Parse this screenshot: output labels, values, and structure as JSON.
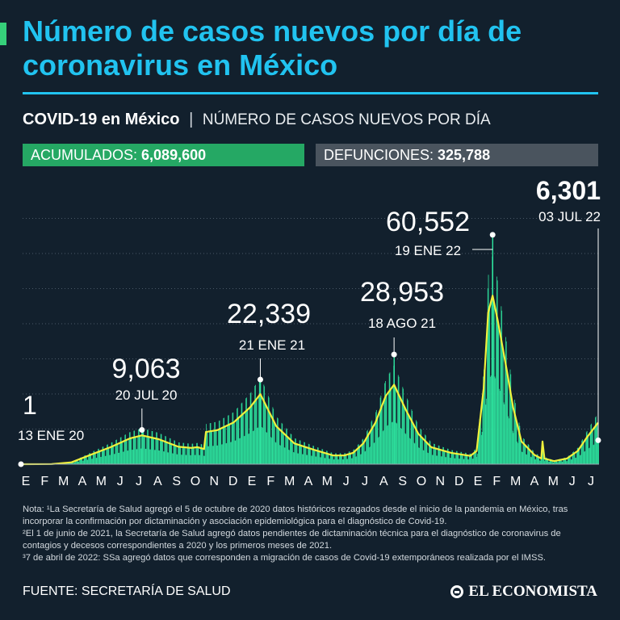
{
  "header": {
    "title": "Número de casos nuevos por día de coronavirus en México"
  },
  "subtitle": {
    "bold": "COVID-19 en México",
    "separator": "|",
    "light": "NÚMERO DE CASOS NUEVOS POR DÍA"
  },
  "stats": {
    "accumulated_label": "ACUMULADOS: ",
    "accumulated_value": "6,089,600",
    "deaths_label": "DEFUNCIONES: ",
    "deaths_value": "325,788"
  },
  "colors": {
    "background": "#12202d",
    "title": "#21c3f0",
    "bars": "#2ee6a0",
    "average": "#f0f03c",
    "gridline": "#4a5866"
  },
  "chart_data": {
    "type": "bar",
    "title": "COVID-19 en México | NÚMERO DE CASOS NUEVOS POR DÍA",
    "xlabel": "",
    "ylabel": "",
    "ylim": [
      0,
      65000
    ],
    "grid": true,
    "x_start": "2020-01-13",
    "x_end": "2022-07-03",
    "month_ticks": [
      "E",
      "F",
      "M",
      "A",
      "M",
      "J",
      "J",
      "A",
      "S",
      "O",
      "N",
      "D",
      "E",
      "F",
      "M",
      "A",
      "M",
      "J",
      "J",
      "A",
      "S",
      "O",
      "N",
      "D",
      "E",
      "F",
      "M",
      "A",
      "M",
      "J",
      "J"
    ],
    "series": [
      {
        "name": "Casos nuevos por día (tendencia)",
        "points": [
          [
            "2020-01-13",
            0
          ],
          [
            "2020-03-01",
            50
          ],
          [
            "2020-04-01",
            500
          ],
          [
            "2020-05-01",
            2500
          ],
          [
            "2020-06-01",
            4500
          ],
          [
            "2020-07-01",
            6800
          ],
          [
            "2020-07-20",
            7600
          ],
          [
            "2020-08-15",
            6600
          ],
          [
            "2020-09-15",
            4600
          ],
          [
            "2020-10-05",
            4300
          ],
          [
            "2020-10-15",
            4500
          ],
          [
            "2020-10-25",
            4000
          ],
          [
            "2020-10-28",
            8500
          ],
          [
            "2020-11-15",
            9000
          ],
          [
            "2020-12-10",
            11000
          ],
          [
            "2021-01-05",
            15000
          ],
          [
            "2021-01-21",
            18500
          ],
          [
            "2021-02-15",
            10000
          ],
          [
            "2021-03-15",
            5500
          ],
          [
            "2021-04-15",
            3800
          ],
          [
            "2021-05-15",
            2300
          ],
          [
            "2021-06-01",
            2300
          ],
          [
            "2021-06-15",
            3000
          ],
          [
            "2021-07-01",
            5500
          ],
          [
            "2021-07-20",
            11000
          ],
          [
            "2021-08-05",
            18000
          ],
          [
            "2021-08-18",
            21000
          ],
          [
            "2021-09-05",
            14500
          ],
          [
            "2021-09-25",
            8000
          ],
          [
            "2021-10-15",
            4500
          ],
          [
            "2021-11-15",
            3000
          ],
          [
            "2021-12-15",
            2200
          ],
          [
            "2021-12-25",
            3500
          ],
          [
            "2022-01-05",
            20000
          ],
          [
            "2022-01-12",
            40000
          ],
          [
            "2022-01-19",
            44500
          ],
          [
            "2022-01-27",
            38000
          ],
          [
            "2022-02-10",
            25000
          ],
          [
            "2022-02-20",
            15000
          ],
          [
            "2022-03-05",
            6000
          ],
          [
            "2022-03-25",
            2500
          ],
          [
            "2022-04-05",
            1500
          ],
          [
            "2022-04-07",
            6000
          ],
          [
            "2022-04-10",
            1500
          ],
          [
            "2022-04-25",
            800
          ],
          [
            "2022-05-15",
            1500
          ],
          [
            "2022-06-01",
            3500
          ],
          [
            "2022-06-15",
            7000
          ],
          [
            "2022-07-03",
            11000
          ]
        ]
      }
    ],
    "annotations": [
      {
        "date": "2020-01-13",
        "value": 1,
        "label": "1",
        "sublabel": "13 ENE 20"
      },
      {
        "date": "2020-07-20",
        "value": 9063,
        "label": "9,063",
        "sublabel": "20 JUL 20"
      },
      {
        "date": "2021-01-21",
        "value": 22339,
        "label": "22,339",
        "sublabel": "21 ENE 21"
      },
      {
        "date": "2021-08-18",
        "value": 28953,
        "label": "28,953",
        "sublabel": "18 AGO 21"
      },
      {
        "date": "2022-01-19",
        "value": 60552,
        "label": "60,552",
        "sublabel": "19 ENE 22"
      },
      {
        "date": "2022-07-03",
        "value": 6301,
        "label": "6,301",
        "sublabel": "03 JUL 22"
      }
    ]
  },
  "footnotes": {
    "note1": "Nota: ¹La Secretaría de Salud agregó el 5 de octubre de 2020 datos históricos rezagados desde el inicio de la pandemia en México, tras incorporar la confirmación por dictaminación y asociación epidemiológica para el diagnóstico de Covid-19.",
    "note2": "²El 1 de junio de 2021, la Secretaría de Salud agregó datos pendientes de dictaminación técnica para el diagnóstico de coronavirus de contagios y decesos correspondientes a 2020 y los primeros meses de 2021.",
    "note3": "³7 de abril de 2022: SSa agregó datos que corresponden a migración de casos de Covid-19 extemporáneos realizada por el IMSS."
  },
  "footer": {
    "source": "FUENTE: SECRETARÍA DE SALUD",
    "brand": "EL ECONOMISTA",
    "brand_icon": "economista-logo-icon"
  }
}
